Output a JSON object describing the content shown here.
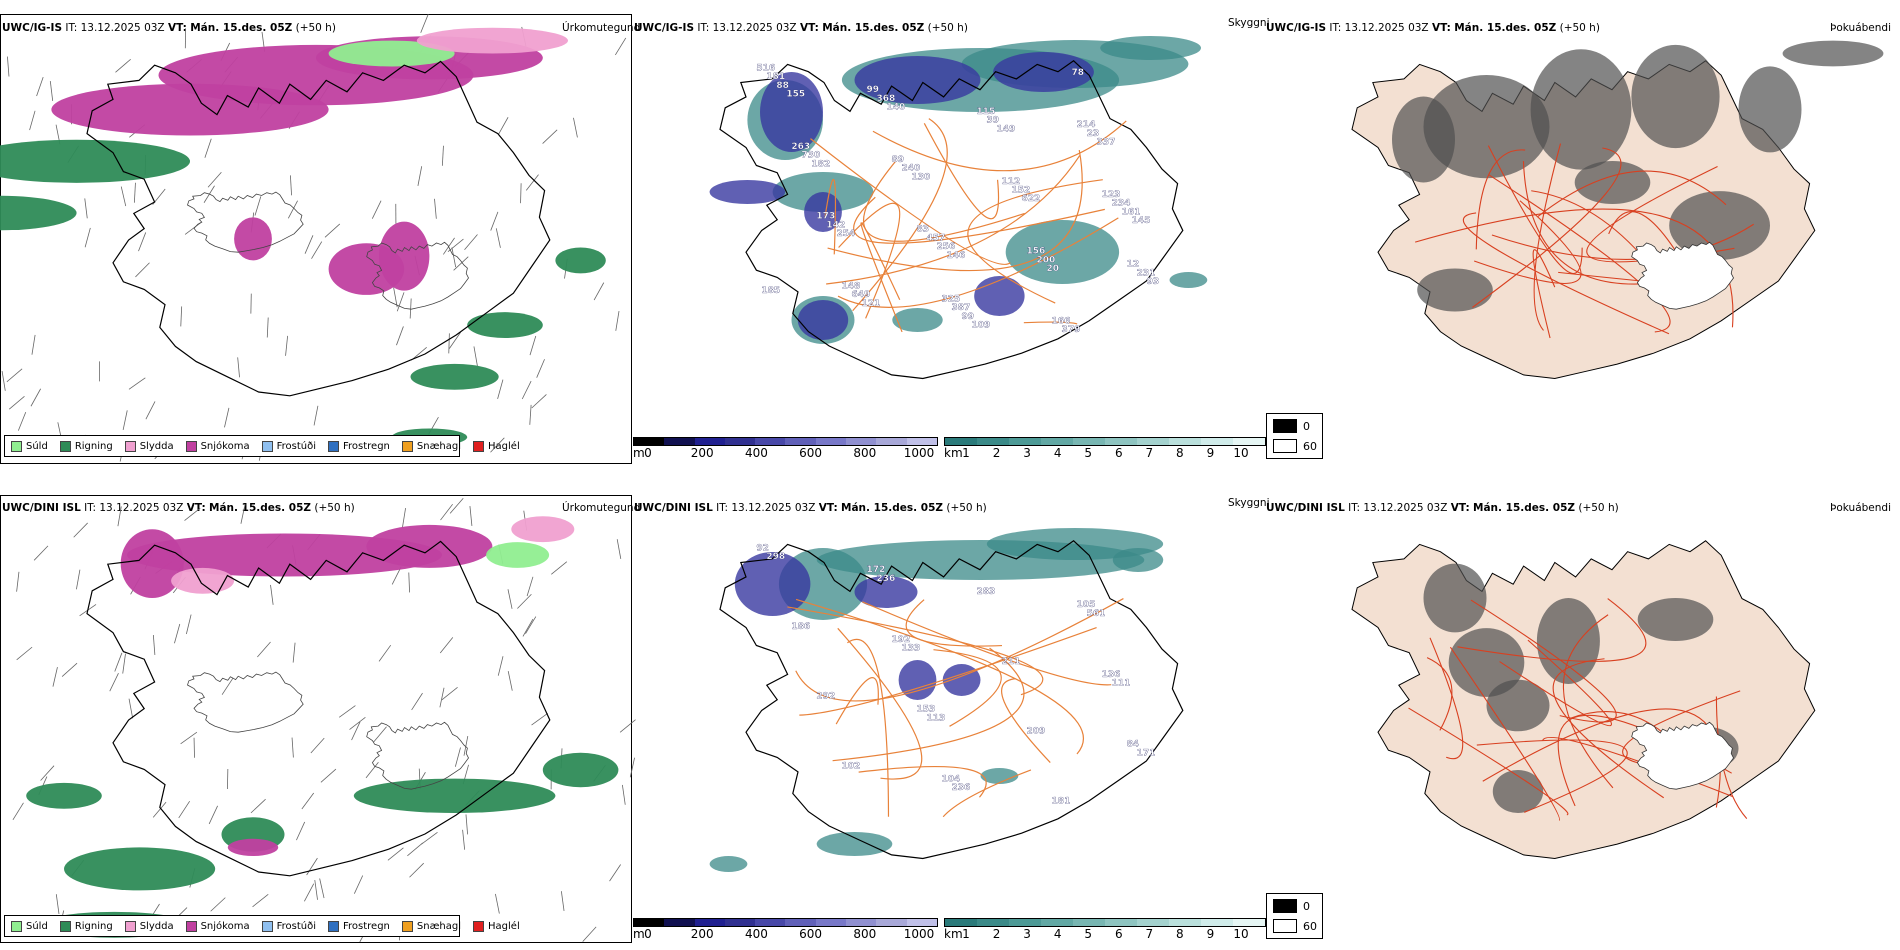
{
  "rows": [
    {
      "model": "UWC/IG-IS",
      "it_label": "IT:",
      "it_value": "13.12.2025 03Z",
      "vt_label": "VT:",
      "vt_value": "Mán. 15.des. 05Z",
      "lead": "(+50 h)",
      "titles": [
        "Úrkomutegund",
        "Skyggni",
        "Þokuábendi"
      ],
      "labels": [
        "516",
        "325",
        "12",
        "83",
        "123",
        "89",
        "214",
        "99",
        "166",
        "148",
        "156",
        "173",
        "112",
        "263",
        "115",
        "181",
        "387",
        "231",
        "457",
        "234",
        "240",
        "23",
        "368",
        "379",
        "649",
        "200",
        "142",
        "152",
        "730",
        "39",
        "88",
        "99",
        "93",
        "256",
        "161",
        "130",
        "337",
        "140",
        "78",
        "121",
        "20",
        "254",
        "622",
        "182",
        "149",
        "155",
        "109",
        "185",
        "146",
        "145"
      ]
    },
    {
      "model": "UWC/DINI ISL",
      "it_label": "IT:",
      "it_value": "13.12.2025 03Z",
      "vt_label": "VT:",
      "vt_value": "Mán. 15.des. 05Z",
      "lead": "(+50 h)",
      "titles": [
        "Úrkomutegund",
        "Skyggni",
        "Þokuábendi"
      ],
      "labels": [
        "92",
        "104",
        "84",
        "153",
        "136",
        "192",
        "105",
        "172",
        "181",
        "102",
        "209",
        "292",
        "211",
        "186",
        "283",
        "298",
        "236",
        "171",
        "113",
        "111",
        "133",
        "561",
        "236"
      ]
    }
  ],
  "precip_legend": [
    {
      "label": "Súld",
      "color": "#90ee90"
    },
    {
      "label": "Rigning",
      "color": "#2e8b57"
    },
    {
      "label": "Slydda",
      "color": "#f0a0d0"
    },
    {
      "label": "Snjókoma",
      "color": "#c040a0"
    },
    {
      "label": "Frostúði",
      "color": "#90c0f0"
    },
    {
      "label": "Frostregn",
      "color": "#3070c0"
    },
    {
      "label": "Snæhagl",
      "color": "#f0a020"
    },
    {
      "label": "Haglél",
      "color": "#e02020"
    }
  ],
  "ceiling_bar": {
    "unit": "m",
    "ticks": [
      "0",
      "200",
      "400",
      "600",
      "800",
      "1000"
    ],
    "colors": [
      "#000000",
      "#101050",
      "#202090",
      "#303090",
      "#4848a8",
      "#6060b8",
      "#7878c8",
      "#9090d0",
      "#a8a8d8",
      "#c0c0e8"
    ]
  },
  "visibility_bar": {
    "unit": "km",
    "ticks": [
      "1",
      "2",
      "3",
      "4",
      "5",
      "6",
      "7",
      "8",
      "9",
      "10"
    ],
    "colors": [
      "#2a7a7a",
      "#3b8a88",
      "#4d9a96",
      "#62a8a4",
      "#78b6b2",
      "#8ec4c0",
      "#a4d2ce",
      "#bae0dc",
      "#d0ecea",
      "#e6f6f4"
    ]
  },
  "fog_key": {
    "top_value": "0",
    "bottom_value": "60",
    "top_color": "#000000",
    "bottom_color": "#ffffff"
  },
  "colors": {
    "rain": "#2e8b57",
    "snow": "#c040a0",
    "sleet": "#f0a0d0",
    "drizzle": "#90ee90",
    "roads": "#e8823a",
    "ceiling": "#3838a0",
    "vis": "#3b8a88",
    "land": "#f3e0d2",
    "fog": "#505050",
    "coast": "#000000",
    "redroad": "#d84020"
  }
}
